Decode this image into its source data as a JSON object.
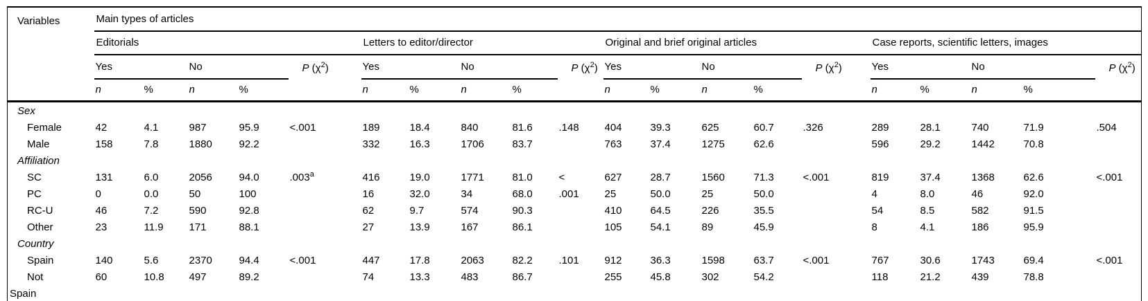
{
  "table": {
    "variables_label": "Variables",
    "group_header": "Main types of articles",
    "sections": [
      {
        "label": "Editorials"
      },
      {
        "label": "Letters to editor/director"
      },
      {
        "label": "Original and brief original articles"
      },
      {
        "label": "Case reports, scientific letters, images"
      }
    ],
    "sub": {
      "yes": "Yes",
      "no": "No",
      "p": "P",
      "p_open": " (χ",
      "p_sup": "2",
      "p_close": ")",
      "n": "n",
      "pct": "%"
    },
    "rows": [
      {
        "type": "category",
        "label": "Sex"
      },
      {
        "type": "data",
        "label": "Female",
        "cells": [
          "42",
          "4.1",
          "987",
          "95.9",
          "<.001",
          "189",
          "18.4",
          "840",
          "81.6",
          ".148",
          "404",
          "39.3",
          "625",
          "60.7",
          ".326",
          "289",
          "28.1",
          "740",
          "71.9",
          ".504"
        ]
      },
      {
        "type": "data",
        "label": "Male",
        "cells": [
          "158",
          "7.8",
          "1880",
          "92.2",
          "",
          "332",
          "16.3",
          "1706",
          "83.7",
          "",
          "763",
          "37.4",
          "1275",
          "62.6",
          "",
          "596",
          "29.2",
          "1442",
          "70.8",
          ""
        ]
      },
      {
        "type": "category",
        "label": "Affiliation"
      },
      {
        "type": "data",
        "label": "SC",
        "cells": [
          "131",
          "6.0",
          "2056",
          "94.0",
          {
            "t": ".003",
            "sup": "a"
          },
          "416",
          "19.0",
          "1771",
          "81.0",
          "<",
          "627",
          "28.7",
          "1560",
          "71.3",
          "<.001",
          "819",
          "37.4",
          "1368",
          "62.6",
          "<.001"
        ]
      },
      {
        "type": "data",
        "label": "PC",
        "cells": [
          "0",
          "0.0",
          "50",
          "100",
          "",
          "16",
          "32.0",
          "34",
          "68.0",
          ".001",
          "25",
          "50.0",
          "25",
          "50.0",
          "",
          "4",
          "8.0",
          "46",
          "92.0",
          ""
        ]
      },
      {
        "type": "data",
        "label": "RC-U",
        "cells": [
          "46",
          "7.2",
          "590",
          "92.8",
          "",
          "62",
          "9.7",
          "574",
          "90.3",
          "",
          "410",
          "64.5",
          "226",
          "35.5",
          "",
          "54",
          "8.5",
          "582",
          "91.5",
          ""
        ]
      },
      {
        "type": "data",
        "label": "Other",
        "cells": [
          "23",
          "11.9",
          "171",
          "88.1",
          "",
          "27",
          "13.9",
          "167",
          "86.1",
          "",
          "105",
          "54.1",
          "89",
          "45.9",
          "",
          "8",
          "4.1",
          "186",
          "95.9",
          ""
        ]
      },
      {
        "type": "category",
        "label": "Country"
      },
      {
        "type": "data",
        "label": "Spain",
        "cells": [
          "140",
          "5.6",
          "2370",
          "94.4",
          "<.001",
          "447",
          "17.8",
          "2063",
          "82.2",
          ".101",
          "912",
          "36.3",
          "1598",
          "63.7",
          "<.001",
          "767",
          "30.6",
          "1743",
          "69.4",
          "<.001"
        ]
      },
      {
        "type": "data",
        "label": "Not\nSpain",
        "cells": [
          "60",
          "10.8",
          "497",
          "89.2",
          "",
          "74",
          "13.3",
          "483",
          "86.7",
          "",
          "255",
          "45.8",
          "302",
          "54.2",
          "",
          "118",
          "21.2",
          "439",
          "78.8",
          ""
        ]
      }
    ]
  }
}
